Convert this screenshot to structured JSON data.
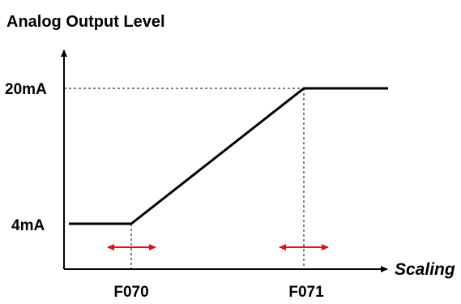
{
  "title": "Analog Output Level",
  "x_axis_label": "Scaling",
  "y_labels": {
    "high": "20mA",
    "low": "4mA"
  },
  "x_labels": {
    "start": "F070",
    "end": "F071"
  },
  "colors": {
    "line": "#000000",
    "arrow": "#e01010",
    "guide": "#000000"
  }
}
